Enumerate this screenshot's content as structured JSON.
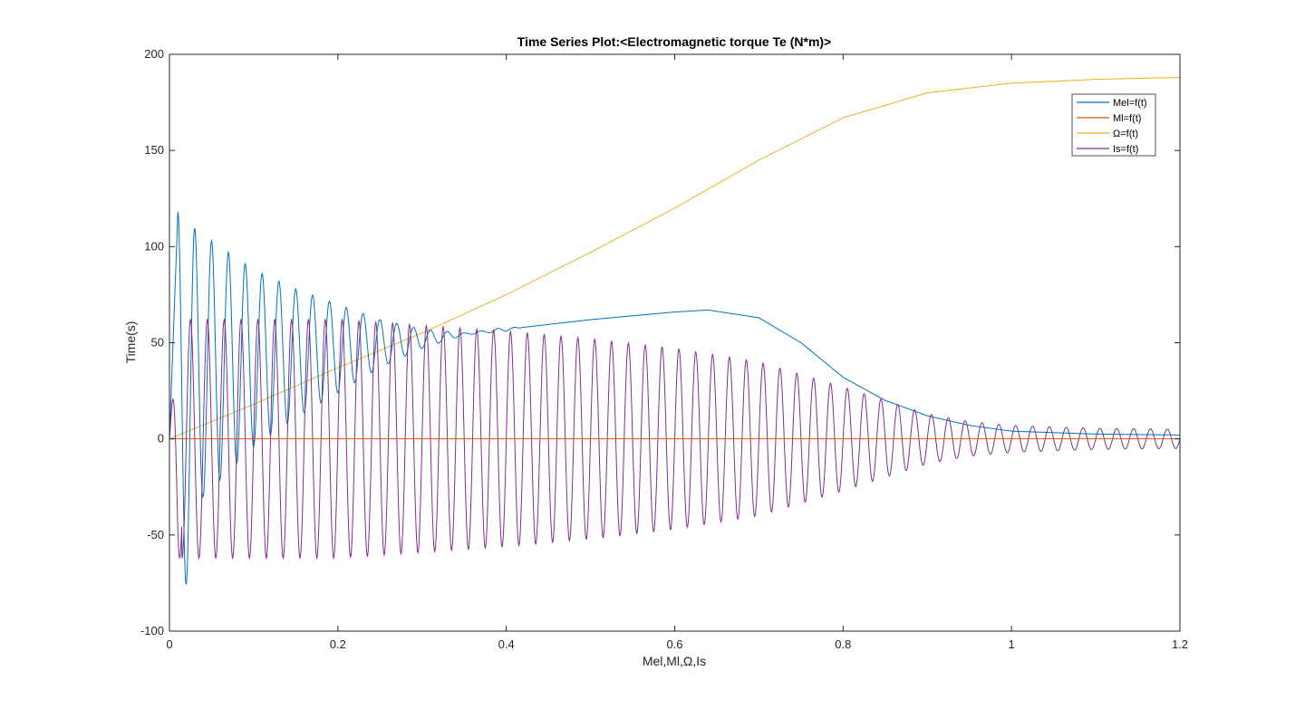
{
  "chart_data": {
    "type": "line",
    "title": "Time Series Plot:<Electromagnetic torque Te (N*m)>",
    "xlabel": "Mel,Ml,Ω,Is",
    "ylabel": "Time(s)",
    "xlim": [
      0,
      1.2
    ],
    "ylim": [
      -100,
      200
    ],
    "xticks": [
      0,
      0.2,
      0.4,
      0.6,
      0.8,
      1,
      1.2
    ],
    "xtick_labels": [
      "0",
      "0.2",
      "0.4",
      "0.6",
      "0.8",
      "1",
      "1.2"
    ],
    "yticks": [
      -100,
      -50,
      0,
      50,
      100,
      150,
      200
    ],
    "ytick_labels": [
      "-100",
      "-50",
      "0",
      "50",
      "100",
      "150",
      "200"
    ],
    "grid": false,
    "legend_position": "top-right",
    "series": [
      {
        "name": "Mel=f(t)",
        "color": "#0072BD",
        "model": "transient torque: decaying 50 Hz oscillation around a mean that rises, peaks near 0.64 s and falls to ~2",
        "envelope": [
          [
            0,
            0
          ],
          [
            0.01,
            118
          ],
          [
            0.023,
            112
          ],
          [
            0.04,
            106
          ],
          [
            0.06,
            100
          ],
          [
            0.1,
            88
          ],
          [
            0.15,
            78
          ],
          [
            0.2,
            70
          ],
          [
            0.25,
            62
          ],
          [
            0.3,
            57
          ],
          [
            0.35,
            55
          ],
          [
            0.4,
            58
          ]
        ],
        "mean": [
          [
            0,
            0
          ],
          [
            0.04,
            38
          ],
          [
            0.1,
            42
          ],
          [
            0.2,
            47
          ],
          [
            0.3,
            52
          ],
          [
            0.4,
            57
          ],
          [
            0.5,
            62
          ],
          [
            0.6,
            66
          ],
          [
            0.64,
            67
          ],
          [
            0.7,
            63
          ],
          [
            0.75,
            50
          ],
          [
            0.8,
            32
          ],
          [
            0.85,
            20
          ],
          [
            0.9,
            12
          ],
          [
            0.95,
            7
          ],
          [
            1.0,
            4
          ],
          [
            1.1,
            2.5
          ],
          [
            1.2,
            2
          ]
        ],
        "points": [
          [
            0,
            0
          ],
          [
            0.01,
            118
          ],
          [
            0.023,
            112
          ],
          [
            0.043,
            106
          ],
          [
            0.06,
            100
          ],
          [
            0.1,
            88
          ],
          [
            0.15,
            78
          ],
          [
            0.2,
            70
          ],
          [
            0.25,
            62
          ],
          [
            0.3,
            57
          ],
          [
            0.35,
            55
          ],
          [
            0.4,
            57
          ],
          [
            0.5,
            62
          ],
          [
            0.6,
            66
          ],
          [
            0.64,
            67
          ],
          [
            0.7,
            63
          ],
          [
            0.8,
            32
          ],
          [
            0.9,
            12
          ],
          [
            1.0,
            4
          ],
          [
            1.1,
            2.5
          ],
          [
            1.2,
            2
          ]
        ]
      },
      {
        "name": "Ml=f(t)",
        "color": "#D95319",
        "model": "constant load torque",
        "points": [
          [
            0,
            0
          ],
          [
            1.2,
            0
          ]
        ]
      },
      {
        "name": "Ω=f(t)",
        "color": "#EDB120",
        "model": "rotor speed, smooth monotonic rise to steady state",
        "points": [
          [
            0,
            0
          ],
          [
            0.1,
            18
          ],
          [
            0.2,
            37
          ],
          [
            0.3,
            55
          ],
          [
            0.4,
            75
          ],
          [
            0.5,
            97
          ],
          [
            0.6,
            120
          ],
          [
            0.7,
            145
          ],
          [
            0.8,
            167
          ],
          [
            0.9,
            180
          ],
          [
            1.0,
            185
          ],
          [
            1.1,
            187
          ],
          [
            1.2,
            188
          ]
        ]
      },
      {
        "name": "Is=f(t)",
        "color": "#7E2F8E",
        "model": "stator current, 50 Hz oscillation with decaying amplitude",
        "frequency_hz": 50,
        "amplitude": [
          [
            0,
            62
          ],
          [
            0.1,
            62
          ],
          [
            0.2,
            62
          ],
          [
            0.3,
            59
          ],
          [
            0.4,
            56
          ],
          [
            0.5,
            52
          ],
          [
            0.6,
            47
          ],
          [
            0.7,
            40
          ],
          [
            0.8,
            27
          ],
          [
            0.85,
            20
          ],
          [
            0.9,
            13
          ],
          [
            0.95,
            9
          ],
          [
            1.0,
            7
          ],
          [
            1.1,
            5.5
          ],
          [
            1.2,
            5
          ]
        ],
        "points": [
          [
            0,
            0
          ],
          [
            0.01,
            76
          ],
          [
            0.02,
            -60
          ],
          [
            0.25,
            62
          ],
          [
            0.23,
            -63
          ],
          [
            0.4,
            56
          ],
          [
            0.6,
            47
          ],
          [
            0.8,
            27
          ],
          [
            1.0,
            7
          ],
          [
            1.2,
            5
          ]
        ]
      }
    ]
  }
}
